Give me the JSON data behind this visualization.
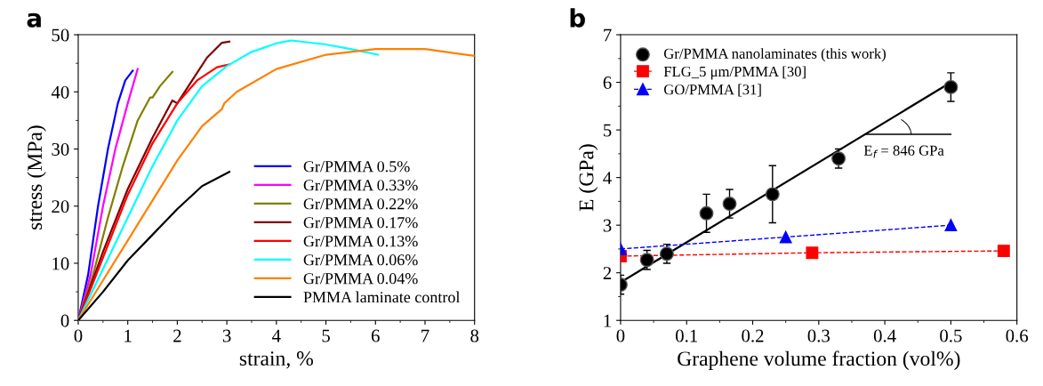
{
  "chart_data": [
    {
      "type": "line",
      "title": "a",
      "xlabel": "strain, %",
      "ylabel": "stress (MPa)",
      "xlim": [
        0,
        8
      ],
      "ylim": [
        0,
        50
      ],
      "xticks": [
        0,
        1,
        2,
        3,
        4,
        5,
        6,
        7,
        8
      ],
      "yticks": [
        0,
        10,
        20,
        30,
        40,
        50
      ],
      "grid": false,
      "legend": "bottom right",
      "marker": "none",
      "line_style": "solid",
      "series": [
        {
          "name": "Gr/PMMA 0.5%",
          "color": "#0000ff",
          "x": [
            0,
            0.2,
            0.4,
            0.6,
            0.8,
            0.95,
            1.1
          ],
          "values": [
            0,
            8,
            20,
            30,
            38,
            42,
            43.7
          ]
        },
        {
          "name": "Gr/PMMA 0.33%",
          "color": "#ff00ff",
          "x": [
            0,
            0.25,
            0.5,
            0.75,
            1.0,
            1.2
          ],
          "values": [
            0,
            8,
            20,
            30,
            38,
            44
          ]
        },
        {
          "name": "Gr/PMMA 0.22%",
          "color": "#808000",
          "x": [
            0,
            0.3,
            0.6,
            0.9,
            1.2,
            1.45,
            1.5,
            1.65,
            1.9
          ],
          "values": [
            0,
            8,
            18,
            27,
            35,
            39,
            39,
            41,
            43.5
          ]
        },
        {
          "name": "Gr/PMMA 0.17%",
          "color": "#800000",
          "x": [
            0,
            0.5,
            1.0,
            1.5,
            1.9,
            2.0,
            2.3,
            2.6,
            2.9,
            3.05
          ],
          "values": [
            0,
            12,
            23,
            32,
            38.5,
            38,
            42,
            46,
            48.6,
            48.8
          ]
        },
        {
          "name": "Gr/PMMA 0.13%",
          "color": "#ff0000",
          "x": [
            0,
            0.5,
            1.0,
            1.5,
            2.0,
            2.4,
            2.8,
            3.05
          ],
          "values": [
            0,
            11,
            22,
            31,
            38,
            42,
            44.3,
            44.8
          ]
        },
        {
          "name": "Gr/PMMA 0.06%",
          "color": "#00ffff",
          "x": [
            0,
            0.5,
            1.0,
            1.5,
            2.0,
            2.5,
            3.0,
            3.5,
            4.0,
            4.3,
            5.0,
            5.5,
            6.05
          ],
          "values": [
            0,
            9,
            18,
            27,
            35,
            41,
            44.5,
            47,
            48.5,
            49,
            48.3,
            47.5,
            46.5
          ]
        },
        {
          "name": "Gr/PMMA 0.04%",
          "color": "#ff8000",
          "x": [
            0,
            0.5,
            1.0,
            1.5,
            2.0,
            2.5,
            2.9,
            2.95,
            3.2,
            4.0,
            5.0,
            6.0,
            7.0,
            8.0
          ],
          "values": [
            0,
            7,
            14,
            21,
            28,
            34,
            37,
            38,
            40,
            44,
            46.5,
            47.5,
            47.5,
            46.3
          ]
        },
        {
          "name": "PMMA laminate control",
          "color": "#000000",
          "x": [
            0,
            0.5,
            1.0,
            1.5,
            2.0,
            2.5,
            3.05
          ],
          "values": [
            0,
            5,
            10.5,
            15,
            19.5,
            23.5,
            26
          ]
        }
      ]
    },
    {
      "type": "scatter",
      "title": "b",
      "xlabel": "Graphene volume fraction (vol%)",
      "ylabel": "E (GPa)",
      "xlim": [
        0,
        0.6
      ],
      "ylim": [
        1,
        7
      ],
      "xticks": [
        0,
        0.1,
        0.2,
        0.3,
        0.4,
        0.5,
        0.6
      ],
      "yticks": [
        1,
        2,
        3,
        4,
        5,
        6,
        7
      ],
      "grid": false,
      "legend": "top left",
      "annotations": [
        "E$_{f}$ = 846 GPa"
      ],
      "series": [
        {
          "name": "Gr/PMMA nanolaminates (this work)",
          "type": "scatter",
          "marker": "circle",
          "color": "#000000",
          "x": [
            0,
            0.04,
            0.07,
            0.13,
            0.165,
            0.23,
            0.33,
            0.5
          ],
          "values": [
            1.75,
            2.27,
            2.4,
            3.25,
            3.45,
            3.65,
            4.4,
            5.9
          ],
          "errors": [
            0.2,
            0.2,
            0.2,
            0.4,
            0.3,
            0.6,
            0.2,
            0.3
          ]
        },
        {
          "type": "line",
          "marker": "none",
          "line_style": "solid",
          "color": "#000000",
          "x": [
            0,
            0.5
          ],
          "values": [
            1.8,
            6.0
          ]
        },
        {
          "name": "FLG_5 μm/PMMA [30]",
          "type": "line",
          "marker": "square",
          "line_style": "dashed",
          "color": "#ff0000",
          "x": [
            0,
            0.29,
            0.58
          ],
          "values": [
            2.35,
            2.42,
            2.46
          ]
        },
        {
          "name": "GO/PMMA [31]",
          "type": "line",
          "marker": "triangle",
          "line_style": "dashed",
          "color": "#0000ff",
          "x": [
            0,
            0.25,
            0.5
          ],
          "values": [
            2.5,
            2.75,
            3.0
          ]
        }
      ]
    }
  ]
}
